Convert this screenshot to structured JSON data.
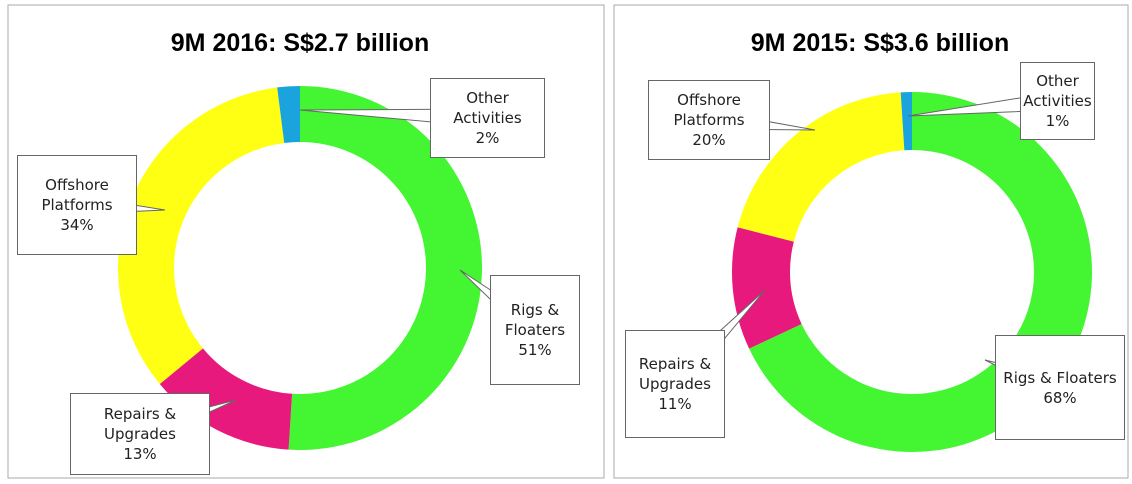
{
  "chart_data": [
    {
      "type": "donut",
      "title": "9M 2016: S$2.7 billion",
      "categories": [
        "Rigs & Floaters",
        "Repairs & Upgrades",
        "Offshore Platforms",
        "Other Activities"
      ],
      "values": [
        51,
        13,
        34,
        2
      ],
      "value_labels": [
        "51%",
        "13%",
        "34%",
        "2%"
      ],
      "colors": [
        "#44f532",
        "#e8197c",
        "#ffff14",
        "#1ba3dd"
      ]
    },
    {
      "type": "donut",
      "title": "9M 2015: S$3.6 billion",
      "categories": [
        "Rigs & Floaters",
        "Repairs & Upgrades",
        "Offshore Platforms",
        "Other Activities"
      ],
      "values": [
        68,
        11,
        20,
        1
      ],
      "value_labels": [
        "68%",
        "11%",
        "20%",
        "1%"
      ],
      "colors": [
        "#44f532",
        "#e8197c",
        "#ffff14",
        "#1ba3dd"
      ]
    }
  ]
}
